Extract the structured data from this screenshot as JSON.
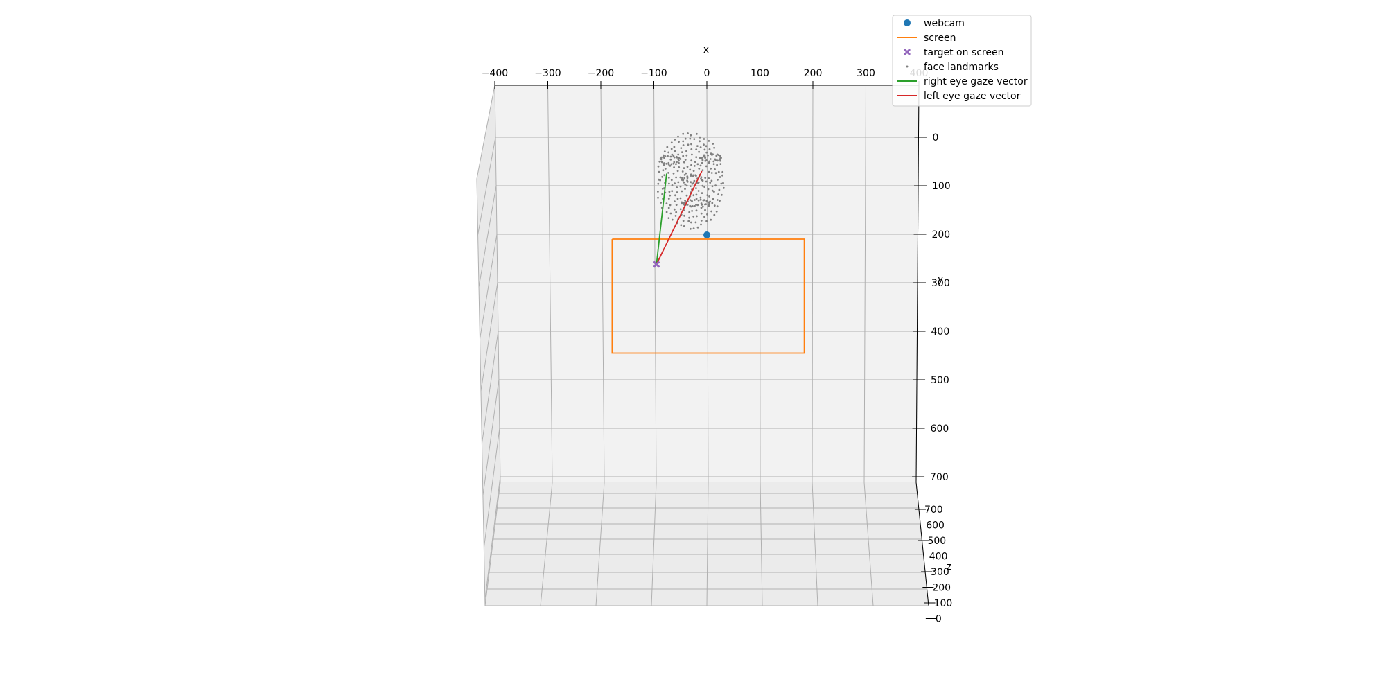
{
  "chart_data": {
    "type": "scatter",
    "title": "",
    "xlabel": "x",
    "ylabel": "y",
    "zlabel": "z",
    "x_ticks": [
      "−400",
      "−300",
      "−200",
      "−100",
      "0",
      "100",
      "200",
      "300",
      "400"
    ],
    "y_ticks": [
      "0",
      "100",
      "200",
      "300",
      "400",
      "500",
      "600",
      "700"
    ],
    "z_ticks": [
      "700",
      "600",
      "500",
      "400",
      "300",
      "200",
      "100",
      "0"
    ],
    "xlim": [
      -400,
      400
    ],
    "ylim": [
      -100,
      800
    ],
    "zlim": [
      0,
      750
    ],
    "grid": true,
    "legend_position": "top-right",
    "colors": {
      "webcam": "#1f77b4",
      "screen": "#ff7f0e",
      "target": "#9467bd",
      "landmarks": "#7f7f7f",
      "right_gaze": "#2ca02c",
      "left_gaze": "#d62728",
      "pane": "#f2f2f2",
      "grid": "#b0b0b0"
    },
    "legend": [
      {
        "label": "webcam",
        "marker": "circle",
        "color": "#1f77b4"
      },
      {
        "label": "screen",
        "marker": "line",
        "color": "#ff7f0e"
      },
      {
        "label": "target on screen",
        "marker": "x",
        "color": "#9467bd"
      },
      {
        "label": "face landmarks",
        "marker": "dot",
        "color": "#7f7f7f"
      },
      {
        "label": "right eye gaze vector",
        "marker": "line",
        "color": "#2ca02c"
      },
      {
        "label": "left eye gaze vector",
        "marker": "line",
        "color": "#d62728"
      }
    ],
    "series": {
      "webcam": {
        "x": 0,
        "y": 200
      },
      "screen": {
        "x": [
          -180,
          180,
          180,
          -180,
          -180
        ],
        "y": [
          210,
          210,
          445,
          445,
          210
        ]
      },
      "target": {
        "x": -97,
        "y": 262
      },
      "right_eye_gaze": {
        "x": [
          -78,
          -97
        ],
        "y": [
          75,
          262
        ]
      },
      "left_eye_gaze": {
        "x": [
          -12,
          -97
        ],
        "y": [
          70,
          262
        ]
      },
      "face_landmarks": {
        "center": [
          -33,
          90
        ],
        "rx": 80,
        "ry": 110
      }
    }
  }
}
